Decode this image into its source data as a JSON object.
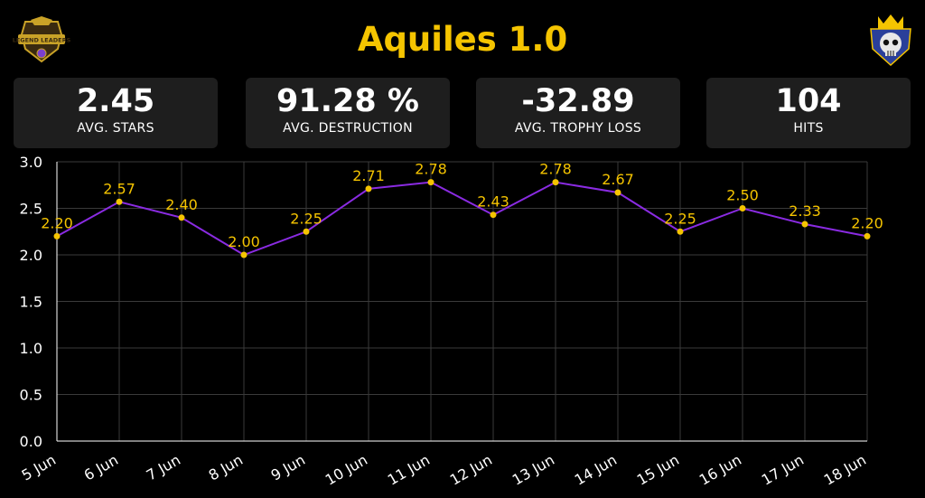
{
  "header": {
    "title": "Aquiles 1.0",
    "left_logo": {
      "icon": "legend-leaders-shield-icon",
      "text": "LEGEND LEADERS"
    },
    "right_logo": {
      "icon": "crowned-skull-shield-icon"
    }
  },
  "stats": [
    {
      "value": "2.45",
      "label": "AVG. STARS"
    },
    {
      "value": "91.28 %",
      "label": "AVG. DESTRUCTION"
    },
    {
      "value": "-32.89",
      "label": "AVG. TROPHY LOSS"
    },
    {
      "value": "104",
      "label": "HITS"
    }
  ],
  "colors": {
    "accent": "#f5c400",
    "line": "#8a2be2",
    "background": "#000000",
    "card": "#1e1e1e"
  },
  "chart_data": {
    "type": "line",
    "categories": [
      "5 Jun",
      "6 Jun",
      "7 Jun",
      "8 Jun",
      "9 Jun",
      "10 Jun",
      "11 Jun",
      "12 Jun",
      "13 Jun",
      "14 Jun",
      "15 Jun",
      "16 Jun",
      "17 Jun",
      "18 Jun"
    ],
    "series": [
      {
        "values": [
          2.2,
          2.57,
          2.4,
          2.0,
          2.25,
          2.71,
          2.78,
          2.43,
          2.78,
          2.67,
          2.25,
          2.5,
          2.33,
          2.2
        ]
      }
    ],
    "data_labels": [
      "2.20",
      "2.57",
      "2.40",
      "2.00",
      "2.25",
      "2.71",
      "2.78",
      "2.43",
      "2.78",
      "2.67",
      "2.25",
      "2.50",
      "2.33",
      "2.20"
    ],
    "yticks": [
      "0.0",
      "0.5",
      "1.0",
      "1.5",
      "2.0",
      "2.5",
      "3.0"
    ],
    "ylim": [
      0,
      3.0
    ],
    "grid": true,
    "xlabel": "",
    "ylabel": ""
  }
}
